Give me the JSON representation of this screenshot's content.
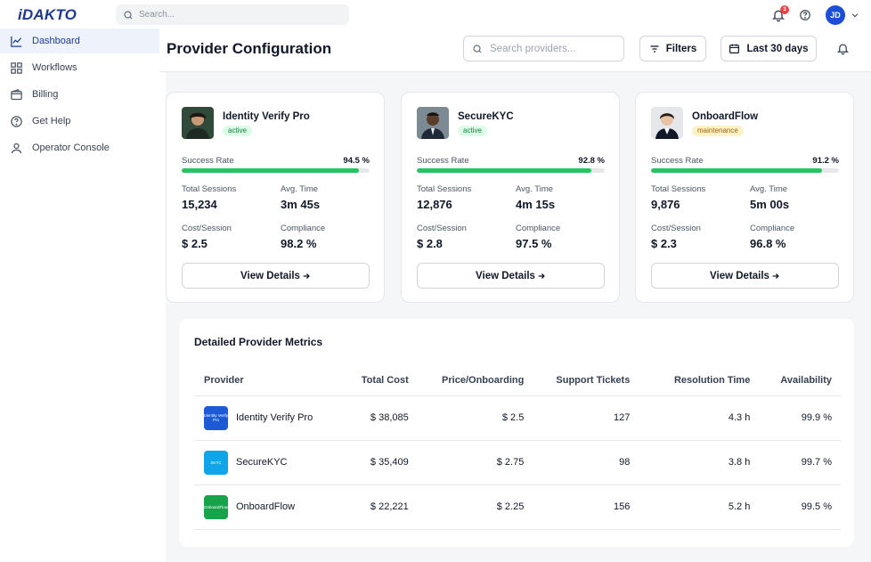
{
  "app": {
    "logo": "iDAKTO",
    "search_placeholder": "Search...",
    "notification_count": "3",
    "user_initials": "JD"
  },
  "sidebar": {
    "items": [
      {
        "label": "Dashboard",
        "icon": "chart-line-icon",
        "active": true
      },
      {
        "label": "Workflows",
        "icon": "grid-icon",
        "active": false
      },
      {
        "label": "Billing",
        "icon": "wallet-icon",
        "active": false
      },
      {
        "label": "Get Help",
        "icon": "help-circle-icon",
        "active": false
      },
      {
        "label": "Operator Console",
        "icon": "user-icon",
        "active": false
      }
    ]
  },
  "header": {
    "title": "Provider Configuration",
    "search_placeholder": "Search providers...",
    "filters_label": "Filters",
    "date_range_label": "Last 30 days"
  },
  "cards": [
    {
      "name": "Identity Verify Pro",
      "status": "active",
      "success_rate_label": "Success Rate",
      "success_rate": "94.5 %",
      "success_rate_value": 94.5,
      "sessions_label": "Total Sessions",
      "sessions": "15,234",
      "avg_time_label": "Avg. Time",
      "avg_time": "3m 45s",
      "cost_label": "Cost/Session",
      "cost": "$ 2.5",
      "compliance_label": "Compliance",
      "compliance": "98.2 %",
      "button_label": "View Details"
    },
    {
      "name": "SecureKYC",
      "status": "active",
      "success_rate_label": "Success Rate",
      "success_rate": "92.8 %",
      "success_rate_value": 92.8,
      "sessions_label": "Total Sessions",
      "sessions": "12,876",
      "avg_time_label": "Avg. Time",
      "avg_time": "4m 15s",
      "cost_label": "Cost/Session",
      "cost": "$ 2.8",
      "compliance_label": "Compliance",
      "compliance": "97.5 %",
      "button_label": "View Details"
    },
    {
      "name": "OnboardFlow",
      "status": "maintenance",
      "success_rate_label": "Success Rate",
      "success_rate": "91.2 %",
      "success_rate_value": 91.2,
      "sessions_label": "Total Sessions",
      "sessions": "9,876",
      "avg_time_label": "Avg. Time",
      "avg_time": "5m 00s",
      "cost_label": "Cost/Session",
      "cost": "$ 2.3",
      "compliance_label": "Compliance",
      "compliance": "96.8 %",
      "button_label": "View Details"
    }
  ],
  "metrics": {
    "title": "Detailed Provider Metrics",
    "columns": [
      "Provider",
      "Total Cost",
      "Price/Onboarding",
      "Support Tickets",
      "Resolution Time",
      "Availability"
    ],
    "rows": [
      {
        "provider": "Identity Verify Pro",
        "logo_text": "Identity Verify Pro",
        "logo_color": "#1d5bd6",
        "total_cost": "$ 38,085",
        "price": "$ 2.5",
        "tickets": "127",
        "resolution": "4.3 h",
        "availability": "99.9 %"
      },
      {
        "provider": "SecureKYC",
        "logo_text": "SKYC",
        "logo_color": "#0ea5e9",
        "total_cost": "$ 35,409",
        "price": "$ 2.75",
        "tickets": "98",
        "resolution": "3.8 h",
        "availability": "99.7 %"
      },
      {
        "provider": "OnboardFlow",
        "logo_text": "OnboardFlow",
        "logo_color": "#16a34a",
        "total_cost": "$ 22,221",
        "price": "$ 2.25",
        "tickets": "156",
        "resolution": "5.2 h",
        "availability": "99.5 %"
      }
    ]
  },
  "colors": {
    "accent": "#1e3a8a",
    "success": "#22c55e",
    "badge_red": "#ef4444"
  }
}
